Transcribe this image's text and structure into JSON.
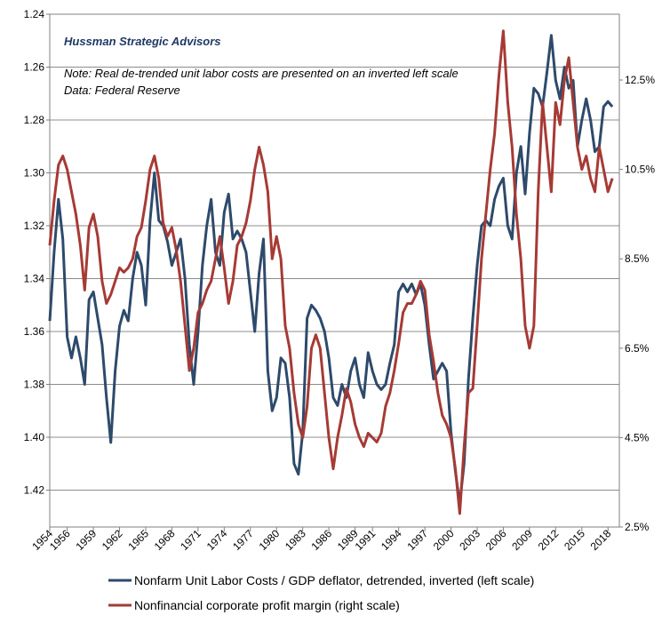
{
  "chart_data": {
    "type": "line",
    "source_label": "Hussman Strategic Advisors",
    "note_line1": "Note: Real de-trended unit labor costs are presented on an inverted left scale",
    "note_line2": "Data: Federal Reserve",
    "left_axis": {
      "min": 1.24,
      "max": 1.4333,
      "inverted": true,
      "tick_labels": [
        "1.24",
        "1.26",
        "1.28",
        "1.30",
        "1.32",
        "1.34",
        "1.36",
        "1.38",
        "1.40",
        "1.42"
      ]
    },
    "right_axis": {
      "min": 2.5,
      "max": 14.0,
      "tick_labels": [
        "12.5%",
        "10.5%",
        "8.5%",
        "6.5%",
        "4.5%",
        "2.5%"
      ]
    },
    "x_tick_labels": [
      "1954",
      "1956",
      "1959",
      "1962",
      "1965",
      "1968",
      "1971",
      "1974",
      "1977",
      "1980",
      "1983",
      "1986",
      "1989",
      "1991",
      "1994",
      "1997",
      "2000",
      "2003",
      "2006",
      "2009",
      "2012",
      "2015",
      "2018"
    ],
    "grid": true,
    "legend_position": "bottom",
    "series": [
      {
        "name": "Nonfarm Unit Labor Costs / GDP deflator, detrended, inverted (left scale)",
        "axis": "left",
        "color": "#2e4a6b",
        "x": [
          1954.0,
          1954.5,
          1955.0,
          1955.5,
          1956.0,
          1956.5,
          1957.0,
          1957.5,
          1958.0,
          1958.5,
          1959.0,
          1959.5,
          1960.0,
          1960.5,
          1961.0,
          1961.5,
          1962.0,
          1962.5,
          1963.0,
          1963.5,
          1964.0,
          1964.5,
          1965.0,
          1965.5,
          1966.0,
          1966.5,
          1967.0,
          1967.5,
          1968.0,
          1968.5,
          1969.0,
          1969.5,
          1970.0,
          1970.5,
          1971.0,
          1971.5,
          1972.0,
          1972.5,
          1973.0,
          1973.5,
          1974.0,
          1974.5,
          1975.0,
          1975.5,
          1976.0,
          1976.5,
          1977.0,
          1977.5,
          1978.0,
          1978.5,
          1979.0,
          1979.5,
          1980.0,
          1980.5,
          1981.0,
          1981.5,
          1982.0,
          1982.5,
          1983.0,
          1983.5,
          1984.0,
          1984.5,
          1985.0,
          1985.5,
          1986.0,
          1986.5,
          1987.0,
          1987.5,
          1988.0,
          1988.5,
          1989.0,
          1989.5,
          1990.0,
          1990.5,
          1991.0,
          1991.5,
          1992.0,
          1992.5,
          1993.0,
          1993.5,
          1994.0,
          1994.5,
          1995.0,
          1995.5,
          1996.0,
          1996.5,
          1997.0,
          1997.5,
          1998.0,
          1998.5,
          1999.0,
          1999.5,
          2000.0,
          2000.5,
          2001.0,
          2001.5,
          2002.0,
          2002.5,
          2003.0,
          2003.5,
          2004.0,
          2004.5,
          2005.0,
          2005.5,
          2006.0,
          2006.5,
          2007.0,
          2007.5,
          2008.0,
          2008.5,
          2009.0,
          2009.5,
          2010.0,
          2010.5,
          2011.0,
          2011.5,
          2012.0,
          2012.5,
          2013.0,
          2013.5,
          2014.0,
          2014.5,
          2015.0,
          2015.5,
          2016.0,
          2016.5,
          2017.0,
          2017.5,
          2018.0,
          2018.5
        ],
        "values": [
          1.356,
          1.33,
          1.31,
          1.325,
          1.362,
          1.37,
          1.362,
          1.37,
          1.38,
          1.348,
          1.345,
          1.355,
          1.365,
          1.385,
          1.402,
          1.375,
          1.358,
          1.352,
          1.356,
          1.34,
          1.33,
          1.335,
          1.35,
          1.318,
          1.3,
          1.318,
          1.32,
          1.326,
          1.335,
          1.33,
          1.325,
          1.34,
          1.365,
          1.38,
          1.36,
          1.335,
          1.32,
          1.31,
          1.33,
          1.335,
          1.315,
          1.308,
          1.325,
          1.322,
          1.325,
          1.33,
          1.345,
          1.36,
          1.338,
          1.325,
          1.375,
          1.39,
          1.385,
          1.37,
          1.372,
          1.385,
          1.41,
          1.414,
          1.398,
          1.355,
          1.35,
          1.352,
          1.355,
          1.36,
          1.37,
          1.385,
          1.388,
          1.38,
          1.385,
          1.375,
          1.37,
          1.38,
          1.385,
          1.368,
          1.375,
          1.38,
          1.382,
          1.38,
          1.372,
          1.365,
          1.345,
          1.342,
          1.345,
          1.342,
          1.346,
          1.342,
          1.35,
          1.365,
          1.378,
          1.375,
          1.372,
          1.375,
          1.398,
          1.413,
          1.425,
          1.41,
          1.378,
          1.355,
          1.335,
          1.32,
          1.318,
          1.32,
          1.31,
          1.305,
          1.302,
          1.32,
          1.325,
          1.3,
          1.29,
          1.308,
          1.285,
          1.268,
          1.27,
          1.275,
          1.262,
          1.248,
          1.265,
          1.272,
          1.26,
          1.268,
          1.265,
          1.29,
          1.28,
          1.272,
          1.28,
          1.292,
          1.29,
          1.275,
          1.273,
          1.275
        ]
      },
      {
        "name": "Nonfinancial corporate profit margin (right scale)",
        "axis": "right",
        "color": "#a63a35",
        "x": [
          1954.0,
          1954.5,
          1955.0,
          1955.5,
          1956.0,
          1956.5,
          1957.0,
          1957.5,
          1958.0,
          1958.5,
          1959.0,
          1959.5,
          1960.0,
          1960.5,
          1961.0,
          1961.5,
          1962.0,
          1962.5,
          1963.0,
          1963.5,
          1964.0,
          1964.5,
          1965.0,
          1965.5,
          1966.0,
          1966.5,
          1967.0,
          1967.5,
          1968.0,
          1968.5,
          1969.0,
          1969.5,
          1970.0,
          1970.5,
          1971.0,
          1971.5,
          1972.0,
          1972.5,
          1973.0,
          1973.5,
          1974.0,
          1974.5,
          1975.0,
          1975.5,
          1976.0,
          1976.5,
          1977.0,
          1977.5,
          1978.0,
          1978.5,
          1979.0,
          1979.5,
          1980.0,
          1980.5,
          1981.0,
          1981.5,
          1982.0,
          1982.5,
          1983.0,
          1983.5,
          1984.0,
          1984.5,
          1985.0,
          1985.5,
          1986.0,
          1986.5,
          1987.0,
          1987.5,
          1988.0,
          1988.5,
          1989.0,
          1989.5,
          1990.0,
          1990.5,
          1991.0,
          1991.5,
          1992.0,
          1992.5,
          1993.0,
          1993.5,
          1994.0,
          1994.5,
          1995.0,
          1995.5,
          1996.0,
          1996.5,
          1997.0,
          1997.5,
          1998.0,
          1998.5,
          1999.0,
          1999.5,
          2000.0,
          2000.5,
          2001.0,
          2001.5,
          2002.0,
          2002.5,
          2003.0,
          2003.5,
          2004.0,
          2004.5,
          2005.0,
          2005.5,
          2006.0,
          2006.5,
          2007.0,
          2007.5,
          2008.0,
          2008.5,
          2009.0,
          2009.5,
          2010.0,
          2010.5,
          2011.0,
          2011.5,
          2012.0,
          2012.5,
          2013.0,
          2013.5,
          2014.0,
          2014.5,
          2015.0,
          2015.5,
          2016.0,
          2016.5,
          2017.0,
          2017.5,
          2018.0,
          2018.5
        ],
        "values": [
          8.8,
          9.8,
          10.6,
          10.8,
          10.5,
          10.0,
          9.5,
          8.8,
          7.8,
          9.2,
          9.5,
          9.0,
          8.0,
          7.5,
          7.7,
          8.0,
          8.3,
          8.2,
          8.3,
          8.5,
          9.0,
          9.2,
          9.8,
          10.5,
          10.8,
          10.3,
          9.3,
          9.0,
          9.2,
          8.7,
          8.0,
          7.0,
          6.0,
          6.5,
          7.3,
          7.5,
          7.8,
          8.0,
          8.5,
          9.0,
          8.3,
          7.5,
          8.0,
          8.8,
          9.0,
          9.3,
          9.8,
          10.5,
          11.0,
          10.6,
          10.0,
          8.5,
          9.0,
          8.5,
          7.0,
          6.5,
          5.5,
          4.8,
          4.5,
          5.2,
          6.5,
          6.8,
          6.5,
          5.5,
          4.5,
          3.8,
          4.5,
          5.0,
          5.6,
          5.3,
          4.8,
          4.5,
          4.3,
          4.6,
          4.5,
          4.4,
          4.6,
          5.2,
          5.5,
          6.0,
          6.6,
          7.3,
          7.5,
          7.5,
          7.7,
          8.0,
          7.8,
          6.8,
          6.2,
          5.5,
          5.0,
          4.8,
          4.5,
          3.8,
          2.8,
          4.3,
          5.5,
          5.6,
          7.0,
          8.5,
          9.5,
          10.5,
          11.3,
          12.6,
          13.6,
          12.0,
          11.0,
          9.5,
          8.5,
          7.0,
          6.5,
          7.0,
          10.0,
          12.0,
          11.0,
          10.0,
          12.0,
          11.5,
          12.5,
          13.0,
          12.0,
          11.0,
          10.5,
          10.8,
          10.3,
          10.0,
          11.0,
          10.5,
          10.0,
          10.3
        ]
      }
    ]
  }
}
